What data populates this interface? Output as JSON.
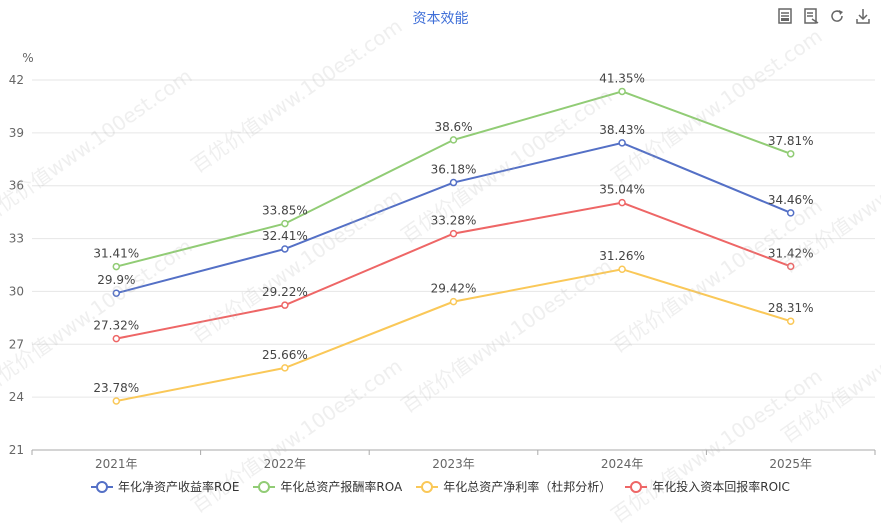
{
  "title": "资本效能",
  "toolbar": {
    "icons": [
      "table-view-icon",
      "data-view-icon",
      "refresh-icon",
      "download-icon"
    ]
  },
  "watermark": "百优价值www.100est.com",
  "chart_data": {
    "type": "line",
    "ylabel": "%",
    "ylim": [
      21,
      42
    ],
    "yticks": [
      "21",
      "24",
      "27",
      "30",
      "33",
      "36",
      "39",
      "42"
    ],
    "categories": [
      "2021年",
      "2022年",
      "2023年",
      "2024年",
      "2025年"
    ],
    "grid": true,
    "legend_position": "bottom",
    "series": [
      {
        "name": "年化净资产收益率ROE",
        "color": "#5470c6",
        "values": [
          29.9,
          32.41,
          36.18,
          38.43,
          34.46
        ],
        "labels": [
          "29.9%",
          "32.41%",
          "36.18%",
          "38.43%",
          "34.46%"
        ]
      },
      {
        "name": "年化总资产报酬率ROA",
        "color": "#91cc75",
        "values": [
          31.41,
          33.85,
          38.6,
          41.35,
          37.81
        ],
        "labels": [
          "31.41%",
          "33.85%",
          "38.6%",
          "41.35%",
          "37.81%"
        ]
      },
      {
        "name": "年化总资产净利率（杜邦分析）",
        "color": "#fac858",
        "values": [
          23.78,
          25.66,
          29.42,
          31.26,
          28.31
        ],
        "labels": [
          "23.78%",
          "25.66%",
          "29.42%",
          "31.26%",
          "28.31%"
        ]
      },
      {
        "name": "年化投入资本回报率ROIC",
        "color": "#ee6666",
        "values": [
          27.32,
          29.22,
          33.28,
          35.04,
          31.42
        ],
        "labels": [
          "27.32%",
          "29.22%",
          "33.28%",
          "35.04%",
          "31.42%"
        ]
      }
    ]
  }
}
